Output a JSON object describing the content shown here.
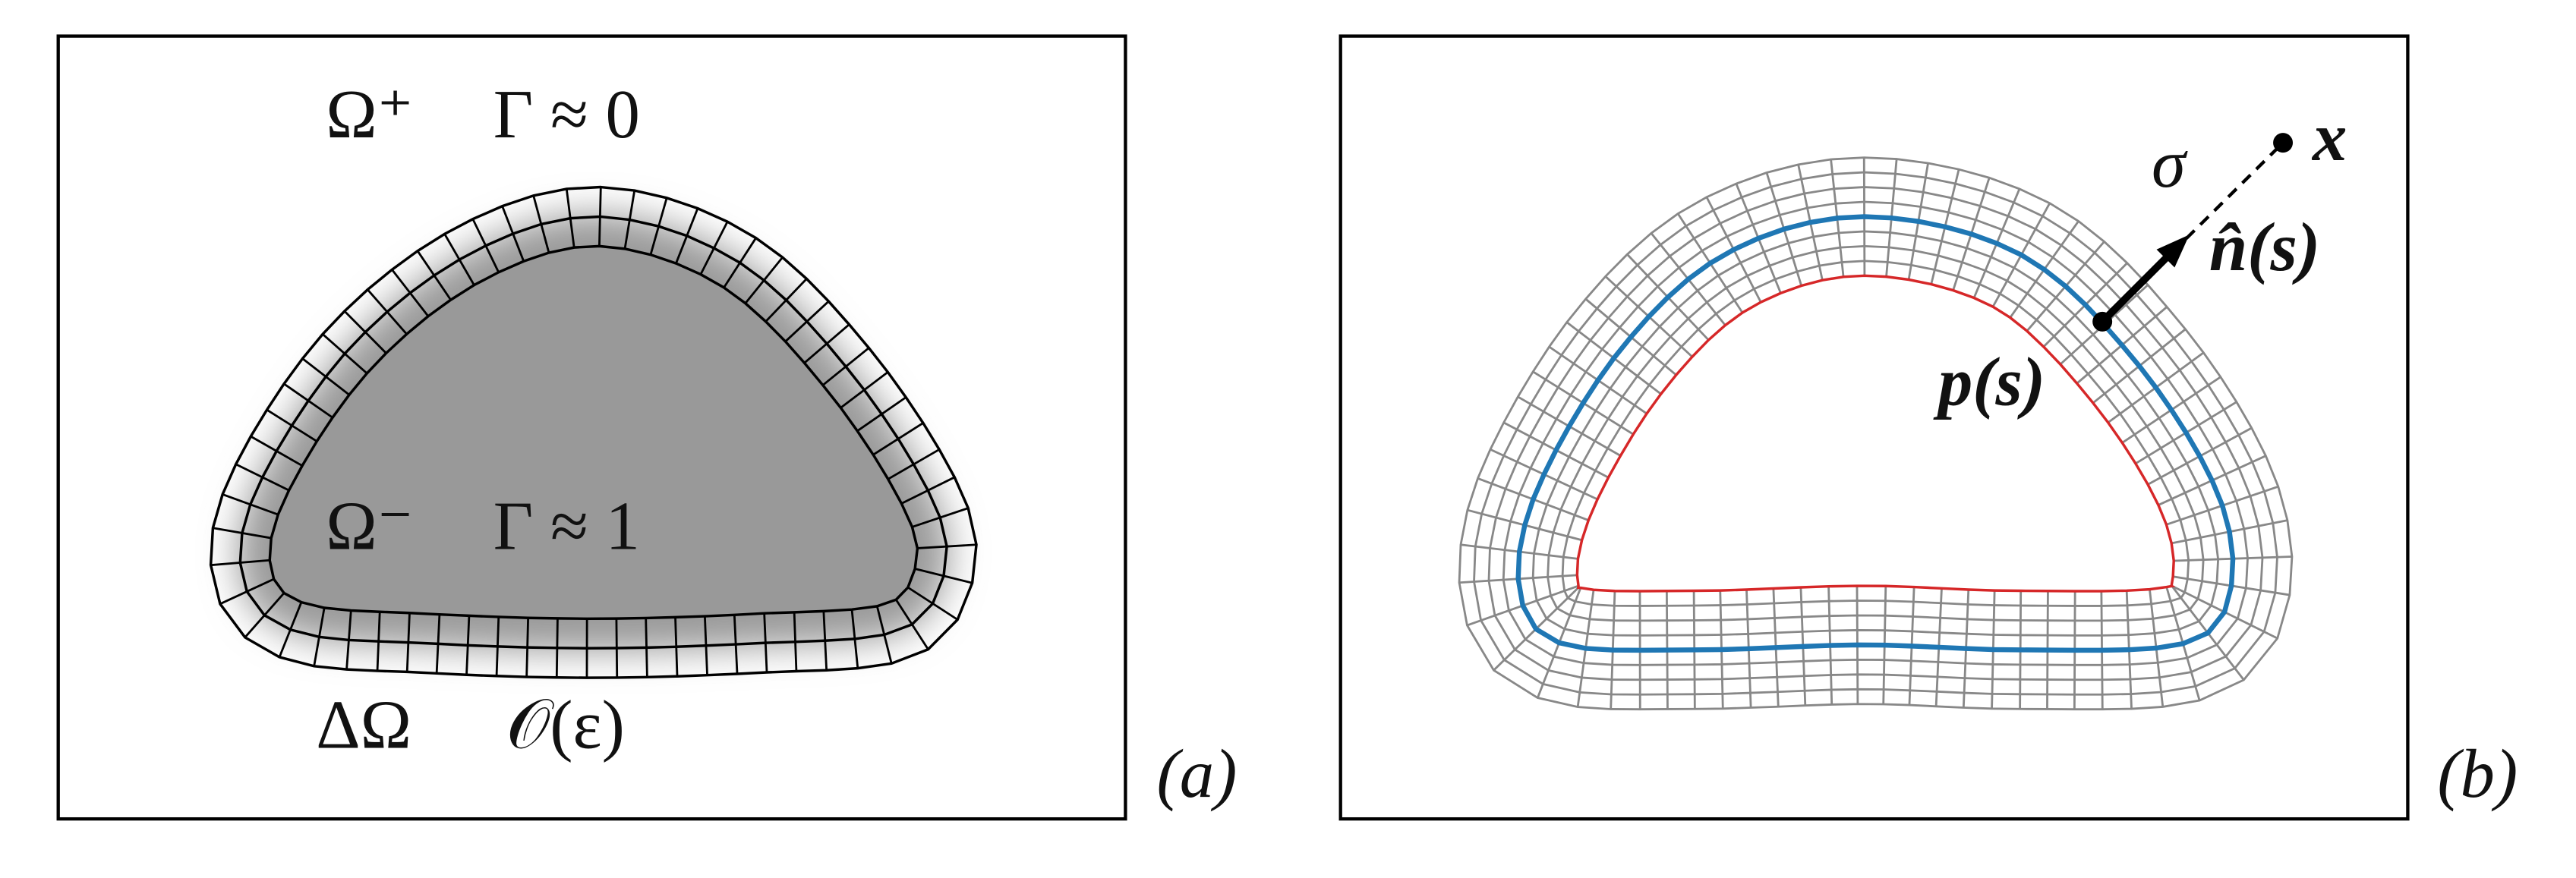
{
  "panel_a": {
    "omega_plus": "Ω⁺",
    "gamma_zero": "Γ ≈ 0",
    "omega_minus": "Ω⁻",
    "gamma_one": "Γ ≈ 1",
    "delta_omega": "ΔΩ",
    "order_eps": "𝒪(ε)",
    "tag": "(a)"
  },
  "panel_b": {
    "sigma": "σ",
    "x": "x",
    "normal": "n̂(s)",
    "point": "p(s)",
    "tag": "(b)"
  }
}
